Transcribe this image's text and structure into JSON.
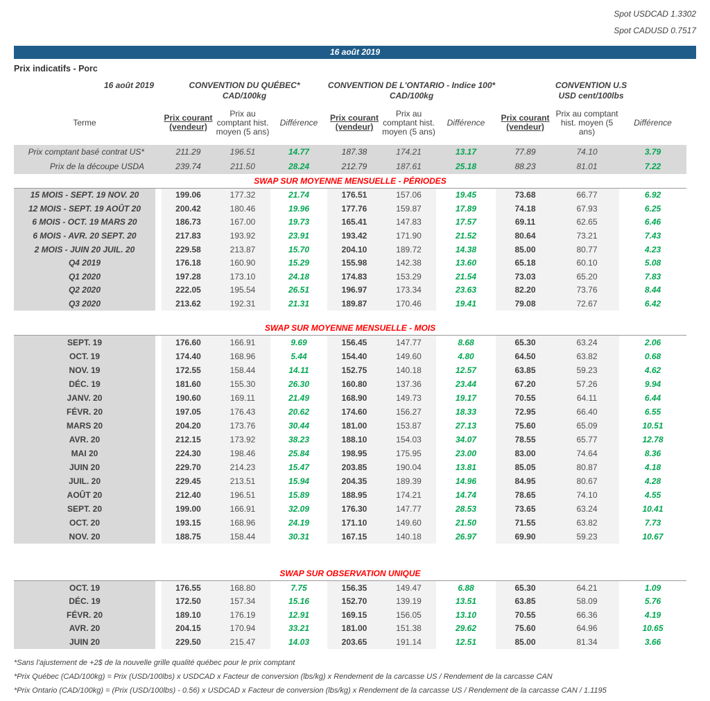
{
  "spot_rates": [
    {
      "label": "Spot USDCAD",
      "value": "1.3302"
    },
    {
      "label": "Spot CADUSD",
      "value": "0.7517"
    }
  ],
  "banner_date": "16 août 2019",
  "page_title": "Prix indicatifs - Porc",
  "header": {
    "date": "16 août 2019",
    "terme_label": "Terme",
    "groups": [
      {
        "title": "CONVENTION DU QUÉBEC*",
        "unit": "CAD/100kg"
      },
      {
        "title": "CONVENTION DE L'ONTARIO - Indice 100*",
        "unit": "CAD/100kg"
      },
      {
        "title": "CONVENTION U.S",
        "unit": "USD cent/100lbs"
      }
    ],
    "col_labels": {
      "courant": "Prix courant (vendeur)",
      "hist": "Prix au comptant hist. moyen (5 ans)",
      "diff": "Différence"
    }
  },
  "spot_rows": [
    {
      "label": "Prix comptant basé contrat US*",
      "values": [
        "211.29",
        "196.51",
        "14.77",
        "187.38",
        "174.21",
        "13.17",
        "77.89",
        "74.10",
        "3.79"
      ]
    },
    {
      "label": "Prix de la découpe USDA",
      "values": [
        "239.74",
        "211.50",
        "28.24",
        "212.79",
        "187.61",
        "25.18",
        "88.23",
        "81.01",
        "7.22"
      ]
    }
  ],
  "sections": [
    {
      "title": "SWAP SUR MOYENNE MENSUELLE - PÉRIODES",
      "rows": [
        {
          "label": "15 MOIS -  SEPT. 19 NOV. 20",
          "values": [
            "199.06",
            "177.32",
            "21.74",
            "176.51",
            "157.06",
            "19.45",
            "73.68",
            "66.77",
            "6.92"
          ]
        },
        {
          "label": "12 MOIS -  SEPT. 19 AOÛT 20",
          "values": [
            "200.42",
            "180.46",
            "19.96",
            "177.76",
            "159.87",
            "17.89",
            "74.18",
            "67.93",
            "6.25"
          ]
        },
        {
          "label": "6 MOIS -  OCT. 19 MARS 20",
          "values": [
            "186.73",
            "167.00",
            "19.73",
            "165.41",
            "147.83",
            "17.57",
            "69.11",
            "62.65",
            "6.46"
          ]
        },
        {
          "label": "6 MOIS -  AVR. 20 SEPT. 20",
          "values": [
            "217.83",
            "193.92",
            "23.91",
            "193.42",
            "171.90",
            "21.52",
            "80.64",
            "73.21",
            "7.43"
          ]
        },
        {
          "label": "2 MOIS -  JUIN 20  JUIL. 20",
          "values": [
            "229.58",
            "213.87",
            "15.70",
            "204.10",
            "189.72",
            "14.38",
            "85.00",
            "80.77",
            "4.23"
          ]
        },
        {
          "label": "Q4 2019",
          "values": [
            "176.18",
            "160.90",
            "15.29",
            "155.98",
            "142.38",
            "13.60",
            "65.18",
            "60.10",
            "5.08"
          ]
        },
        {
          "label": "Q1 2020",
          "values": [
            "197.28",
            "173.10",
            "24.18",
            "174.83",
            "153.29",
            "21.54",
            "73.03",
            "65.20",
            "7.83"
          ]
        },
        {
          "label": "Q2 2020",
          "values": [
            "222.05",
            "195.54",
            "26.51",
            "196.97",
            "173.34",
            "23.63",
            "82.20",
            "73.76",
            "8.44"
          ]
        },
        {
          "label": "Q3 2020",
          "values": [
            "213.62",
            "192.31",
            "21.31",
            "189.87",
            "170.46",
            "19.41",
            "79.08",
            "72.67",
            "6.42"
          ]
        }
      ]
    },
    {
      "title": "SWAP SUR MOYENNE MENSUELLE - MOIS",
      "rows": [
        {
          "label": "SEPT. 19",
          "values": [
            "176.60",
            "166.91",
            "9.69",
            "156.45",
            "147.77",
            "8.68",
            "65.30",
            "63.24",
            "2.06"
          ]
        },
        {
          "label": "OCT. 19",
          "values": [
            "174.40",
            "168.96",
            "5.44",
            "154.40",
            "149.60",
            "4.80",
            "64.50",
            "63.82",
            "0.68"
          ]
        },
        {
          "label": "NOV. 19",
          "values": [
            "172.55",
            "158.44",
            "14.11",
            "152.75",
            "140.18",
            "12.57",
            "63.85",
            "59.23",
            "4.62"
          ]
        },
        {
          "label": "DÉC. 19",
          "values": [
            "181.60",
            "155.30",
            "26.30",
            "160.80",
            "137.36",
            "23.44",
            "67.20",
            "57.26",
            "9.94"
          ]
        },
        {
          "label": "JANV. 20",
          "values": [
            "190.60",
            "169.11",
            "21.49",
            "168.90",
            "149.73",
            "19.17",
            "70.55",
            "64.11",
            "6.44"
          ]
        },
        {
          "label": "FÉVR. 20",
          "values": [
            "197.05",
            "176.43",
            "20.62",
            "174.60",
            "156.27",
            "18.33",
            "72.95",
            "66.40",
            "6.55"
          ]
        },
        {
          "label": "MARS 20",
          "values": [
            "204.20",
            "173.76",
            "30.44",
            "181.00",
            "153.87",
            "27.13",
            "75.60",
            "65.09",
            "10.51"
          ]
        },
        {
          "label": "AVR. 20",
          "values": [
            "212.15",
            "173.92",
            "38.23",
            "188.10",
            "154.03",
            "34.07",
            "78.55",
            "65.77",
            "12.78"
          ]
        },
        {
          "label": "MAI 20",
          "values": [
            "224.30",
            "198.46",
            "25.84",
            "198.95",
            "175.95",
            "23.00",
            "83.00",
            "74.64",
            "8.36"
          ]
        },
        {
          "label": "JUIN 20",
          "values": [
            "229.70",
            "214.23",
            "15.47",
            "203.85",
            "190.04",
            "13.81",
            "85.05",
            "80.87",
            "4.18"
          ]
        },
        {
          "label": "JUIL. 20",
          "values": [
            "229.45",
            "213.51",
            "15.94",
            "204.35",
            "189.39",
            "14.96",
            "84.95",
            "80.67",
            "4.28"
          ]
        },
        {
          "label": "AOÛT 20",
          "values": [
            "212.40",
            "196.51",
            "15.89",
            "188.95",
            "174.21",
            "14.74",
            "78.65",
            "74.10",
            "4.55"
          ]
        },
        {
          "label": "SEPT. 20",
          "values": [
            "199.00",
            "166.91",
            "32.09",
            "176.30",
            "147.77",
            "28.53",
            "73.65",
            "63.24",
            "10.41"
          ]
        },
        {
          "label": "OCT. 20",
          "values": [
            "193.15",
            "168.96",
            "24.19",
            "171.10",
            "149.60",
            "21.50",
            "71.55",
            "63.82",
            "7.73"
          ]
        },
        {
          "label": "NOV. 20",
          "values": [
            "188.75",
            "158.44",
            "30.31",
            "167.15",
            "140.18",
            "26.97",
            "69.90",
            "59.23",
            "10.67"
          ]
        }
      ]
    },
    {
      "title": "SWAP SUR OBSERVATION UNIQUE",
      "rows": [
        {
          "label": "OCT. 19",
          "values": [
            "176.55",
            "168.80",
            "7.75",
            "156.35",
            "149.47",
            "6.88",
            "65.30",
            "64.21",
            "1.09"
          ]
        },
        {
          "label": "DÉC. 19",
          "values": [
            "172.50",
            "157.34",
            "15.16",
            "152.70",
            "139.19",
            "13.51",
            "63.85",
            "58.09",
            "5.76"
          ]
        },
        {
          "label": "FÉVR. 20",
          "values": [
            "189.10",
            "176.19",
            "12.91",
            "169.15",
            "156.05",
            "13.10",
            "70.55",
            "66.36",
            "4.19"
          ]
        },
        {
          "label": "AVR. 20",
          "values": [
            "204.15",
            "170.94",
            "33.21",
            "181.00",
            "151.38",
            "29.62",
            "75.60",
            "64.96",
            "10.65"
          ]
        },
        {
          "label": "JUIN 20",
          "values": [
            "229.50",
            "215.47",
            "14.03",
            "203.65",
            "191.14",
            "12.51",
            "85.00",
            "81.34",
            "3.66"
          ]
        }
      ]
    }
  ],
  "footnotes": [
    "*Sans l'ajustement de +2$ de la nouvelle grille qualité québec pour le prix comptant",
    "*Prix Québec (CAD/100kg) = Prix (USD/100lbs) x USDCAD x Facteur de conversion (lbs/kg) x Rendement de la carcasse US / Rendement de la carcasse CAN",
    "*Prix Ontario (CAD/100kg) = (Prix (USD/100lbs) - 0.56) x USDCAD x Facteur de conversion (lbs/kg) x Rendement de la carcasse US / Rendement de la carcasse CAN / 1.1195"
  ]
}
